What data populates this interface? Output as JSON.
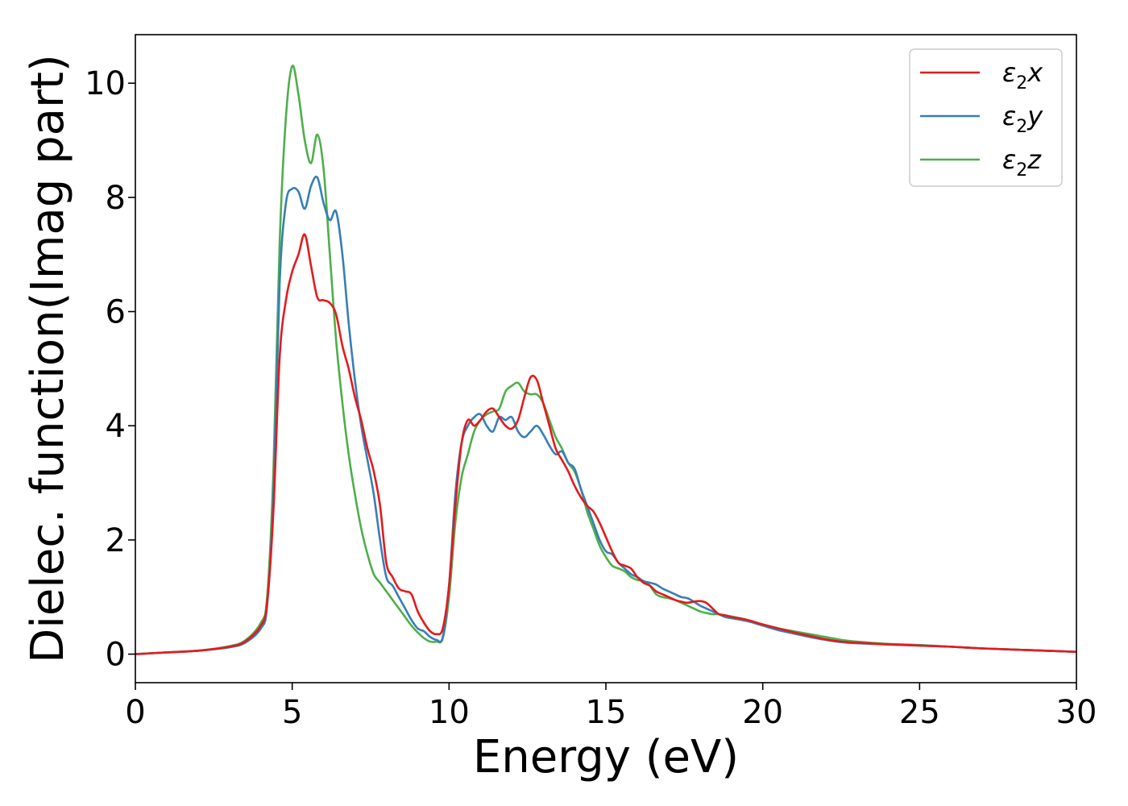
{
  "chart_data": {
    "type": "line",
    "title": "",
    "xlabel": "Energy (eV)",
    "ylabel": "Dielec. function(Imag part)",
    "xlim": [
      0,
      30
    ],
    "ylim": [
      -0.5,
      10.85
    ],
    "xticks": [
      0,
      5,
      10,
      15,
      20,
      25,
      30
    ],
    "yticks": [
      0,
      2,
      4,
      6,
      8,
      10
    ],
    "grid": false,
    "legend_position": "top-right",
    "series": [
      {
        "name": "ε2x",
        "name_base": "ε",
        "name_sub": "2",
        "name_suffix": "x",
        "color": "#e41a1c",
        "x": [
          0,
          1,
          2,
          3,
          3.5,
          4,
          4.2,
          4.4,
          4.6,
          4.8,
          5.0,
          5.2,
          5.4,
          5.6,
          5.8,
          6.0,
          6.2,
          6.4,
          6.6,
          6.8,
          7.0,
          7.2,
          7.4,
          7.6,
          7.8,
          8.0,
          8.2,
          8.4,
          8.6,
          8.8,
          9.0,
          9.2,
          9.4,
          9.6,
          9.8,
          10.0,
          10.2,
          10.4,
          10.6,
          10.8,
          11.0,
          11.2,
          11.4,
          11.6,
          11.8,
          12.0,
          12.2,
          12.4,
          12.6,
          12.8,
          13.0,
          13.2,
          13.4,
          13.6,
          13.8,
          14.0,
          14.2,
          14.4,
          14.6,
          14.8,
          15.0,
          15.2,
          15.4,
          15.6,
          15.8,
          16.0,
          16.2,
          16.4,
          16.6,
          16.8,
          17.0,
          17.2,
          17.4,
          17.6,
          17.8,
          18.0,
          18.2,
          18.4,
          18.6,
          18.8,
          19.0,
          19.5,
          20.0,
          20.5,
          21.0,
          21.5,
          22.0,
          22.5,
          23.0,
          24.0,
          25.0,
          26.0,
          27.0,
          28.0,
          29.0,
          30.0
        ],
        "y": [
          0.0,
          0.03,
          0.06,
          0.13,
          0.22,
          0.5,
          0.9,
          2.5,
          5.2,
          6.2,
          6.7,
          7.0,
          7.35,
          6.8,
          6.25,
          6.2,
          6.15,
          5.95,
          5.4,
          5.0,
          4.5,
          4.1,
          3.6,
          3.2,
          2.6,
          1.6,
          1.35,
          1.15,
          1.1,
          1.05,
          0.75,
          0.55,
          0.4,
          0.35,
          0.45,
          1.2,
          2.6,
          3.7,
          4.1,
          4.0,
          4.1,
          4.25,
          4.3,
          4.15,
          4.0,
          3.95,
          4.1,
          4.5,
          4.85,
          4.8,
          4.4,
          4.0,
          3.6,
          3.4,
          3.2,
          2.95,
          2.75,
          2.6,
          2.5,
          2.3,
          2.05,
          1.8,
          1.6,
          1.55,
          1.5,
          1.35,
          1.25,
          1.2,
          1.1,
          1.05,
          1.0,
          0.95,
          0.92,
          0.9,
          0.92,
          0.93,
          0.9,
          0.8,
          0.7,
          0.68,
          0.65,
          0.6,
          0.52,
          0.45,
          0.38,
          0.32,
          0.26,
          0.22,
          0.2,
          0.17,
          0.15,
          0.13,
          0.1,
          0.08,
          0.06,
          0.04
        ]
      },
      {
        "name": "ε2y",
        "name_base": "ε",
        "name_sub": "2",
        "name_suffix": "y",
        "color": "#377eb8",
        "x": [
          0,
          1,
          2,
          3,
          3.5,
          4,
          4.2,
          4.4,
          4.6,
          4.8,
          5.0,
          5.2,
          5.4,
          5.6,
          5.8,
          6.0,
          6.2,
          6.4,
          6.6,
          6.8,
          7.0,
          7.2,
          7.4,
          7.6,
          7.8,
          8.0,
          8.2,
          8.4,
          8.6,
          8.8,
          9.0,
          9.2,
          9.4,
          9.6,
          9.8,
          10.0,
          10.2,
          10.4,
          10.6,
          10.8,
          11.0,
          11.2,
          11.4,
          11.6,
          11.8,
          12.0,
          12.2,
          12.4,
          12.6,
          12.8,
          13.0,
          13.2,
          13.4,
          13.6,
          13.8,
          14.0,
          14.2,
          14.4,
          14.6,
          14.8,
          15.0,
          15.2,
          15.4,
          15.6,
          15.8,
          16.0,
          16.2,
          16.4,
          16.6,
          16.8,
          17.0,
          17.2,
          17.4,
          17.6,
          17.8,
          18.0,
          18.2,
          18.4,
          18.6,
          18.8,
          19.0,
          19.5,
          20.0,
          20.5,
          21.0,
          21.5,
          22.0,
          22.5,
          23.0,
          24.0,
          25.0,
          26.0,
          27.0,
          28.0,
          29.0,
          30.0
        ],
        "y": [
          0.0,
          0.03,
          0.06,
          0.12,
          0.2,
          0.45,
          0.85,
          2.8,
          6.5,
          7.9,
          8.15,
          8.1,
          7.8,
          8.2,
          8.35,
          7.9,
          7.6,
          7.75,
          7.0,
          5.8,
          4.8,
          4.0,
          3.4,
          2.8,
          2.0,
          1.35,
          1.2,
          1.0,
          0.8,
          0.6,
          0.45,
          0.4,
          0.3,
          0.25,
          0.3,
          1.2,
          2.8,
          3.7,
          4.0,
          4.15,
          4.2,
          4.0,
          3.9,
          4.15,
          4.1,
          4.15,
          3.9,
          3.8,
          3.9,
          4.0,
          3.85,
          3.65,
          3.5,
          3.55,
          3.35,
          3.25,
          2.9,
          2.6,
          2.3,
          2.0,
          1.8,
          1.75,
          1.6,
          1.5,
          1.4,
          1.35,
          1.28,
          1.25,
          1.22,
          1.15,
          1.1,
          1.05,
          1.0,
          0.98,
          0.92,
          0.85,
          0.8,
          0.75,
          0.7,
          0.65,
          0.63,
          0.58,
          0.5,
          0.42,
          0.36,
          0.3,
          0.25,
          0.21,
          0.19,
          0.17,
          0.15,
          0.13,
          0.1,
          0.08,
          0.06,
          0.04
        ]
      },
      {
        "name": "ε2z",
        "name_base": "ε",
        "name_sub": "2",
        "name_suffix": "z",
        "color": "#4daf4a",
        "x": [
          0,
          1,
          2,
          3,
          3.5,
          4,
          4.2,
          4.4,
          4.6,
          4.8,
          5.0,
          5.2,
          5.4,
          5.6,
          5.8,
          6.0,
          6.2,
          6.4,
          6.6,
          6.8,
          7.0,
          7.2,
          7.4,
          7.6,
          7.8,
          8.0,
          8.2,
          8.4,
          8.6,
          8.8,
          9.0,
          9.2,
          9.4,
          9.6,
          9.8,
          10.0,
          10.2,
          10.4,
          10.6,
          10.8,
          11.0,
          11.2,
          11.4,
          11.6,
          11.8,
          12.0,
          12.2,
          12.4,
          12.6,
          12.8,
          13.0,
          13.2,
          13.4,
          13.6,
          13.8,
          14.0,
          14.2,
          14.4,
          14.6,
          14.8,
          15.0,
          15.2,
          15.4,
          15.6,
          15.8,
          16.0,
          16.2,
          16.4,
          16.6,
          16.8,
          17.0,
          17.2,
          17.4,
          17.6,
          17.8,
          18.0,
          18.2,
          18.4,
          18.6,
          18.8,
          19.0,
          19.5,
          20.0,
          20.5,
          21.0,
          21.5,
          22.0,
          22.5,
          23.0,
          24.0,
          25.0,
          26.0,
          27.0,
          28.0,
          29.0,
          30.0
        ],
        "y": [
          0.0,
          0.03,
          0.06,
          0.14,
          0.24,
          0.55,
          1.0,
          3.2,
          7.2,
          9.4,
          10.3,
          9.8,
          9.0,
          8.6,
          9.1,
          8.5,
          7.0,
          5.5,
          4.4,
          3.5,
          2.8,
          2.2,
          1.75,
          1.4,
          1.25,
          1.1,
          0.95,
          0.8,
          0.65,
          0.5,
          0.38,
          0.28,
          0.22,
          0.22,
          0.28,
          1.0,
          2.3,
          3.1,
          3.5,
          3.9,
          4.1,
          4.2,
          4.25,
          4.3,
          4.6,
          4.7,
          4.75,
          4.6,
          4.55,
          4.55,
          4.4,
          4.1,
          3.8,
          3.6,
          3.35,
          3.2,
          2.9,
          2.5,
          2.2,
          1.9,
          1.7,
          1.55,
          1.5,
          1.45,
          1.35,
          1.3,
          1.28,
          1.2,
          1.05,
          1.0,
          0.98,
          0.95,
          0.9,
          0.85,
          0.8,
          0.75,
          0.72,
          0.7,
          0.7,
          0.68,
          0.66,
          0.6,
          0.52,
          0.45,
          0.4,
          0.35,
          0.3,
          0.25,
          0.22,
          0.18,
          0.16,
          0.13,
          0.1,
          0.08,
          0.06,
          0.04
        ]
      }
    ]
  }
}
